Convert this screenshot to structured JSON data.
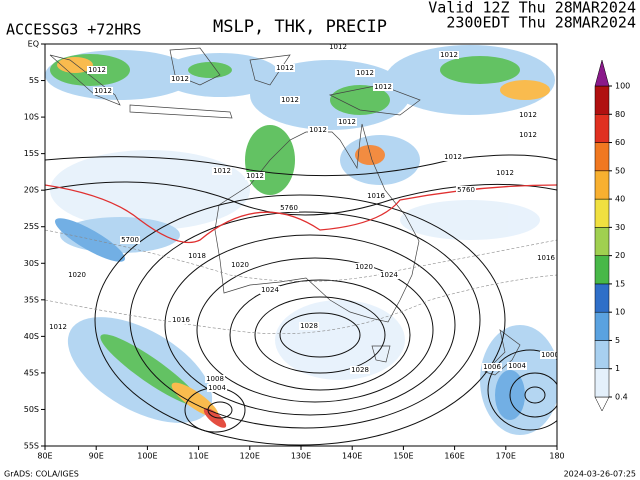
{
  "header": {
    "model": "ACCESSG3 +72HRS",
    "title": "MSLP, THK, PRECIP",
    "valid": "Valid 12Z Thu 28MAR2024",
    "local": "2300EDT Thu 28MAR2024"
  },
  "map": {
    "lon_labels": [
      "80E",
      "90E",
      "100E",
      "110E",
      "120E",
      "130E",
      "140E",
      "150E",
      "160E",
      "170E",
      "180"
    ],
    "lat_labels": [
      "EQ",
      "5S",
      "10S",
      "15S",
      "20S",
      "25S",
      "30S",
      "35S",
      "40S",
      "45S",
      "50S",
      "55S"
    ],
    "contour_labels": [
      "1012",
      "1012",
      "1012",
      "1012",
      "1012",
      "1012",
      "1012",
      "1012",
      "1012",
      "1012",
      "1012",
      "1012",
      "1012",
      "1012",
      "1012",
      "1012",
      "1012",
      "1016",
      "1016",
      "1016",
      "1018",
      "1020",
      "1020",
      "1020",
      "1024",
      "1024",
      "1028",
      "1028",
      "1008",
      "1004",
      "1006",
      "1004",
      "1000",
      "5760",
      "5760",
      "5700",
      "1012"
    ]
  },
  "colorbar": {
    "levels": [
      0.4,
      1,
      5,
      10,
      15,
      20,
      30,
      40,
      50,
      60,
      80,
      100
    ],
    "colors": [
      "#ffffff",
      "#e4f0fb",
      "#a8d0f0",
      "#5aa2e0",
      "#2f6fc8",
      "#48b848",
      "#a0d050",
      "#f0e040",
      "#f8b030",
      "#f07820",
      "#e03020",
      "#b01010",
      "#8a1a8a"
    ]
  },
  "footer": {
    "credit": "GrADS: COLA/IGES",
    "timestamp": "2024-03-26-07:25"
  }
}
